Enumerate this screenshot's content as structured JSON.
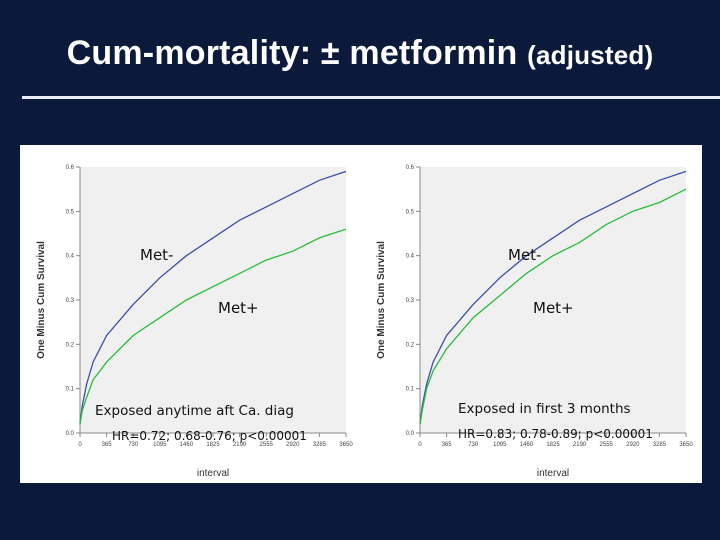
{
  "title": {
    "main": "Cum-mortality: ± metformin",
    "sub": "(adjusted)"
  },
  "chart_data": [
    {
      "type": "line",
      "ylabel": "One Minus Cum Survival",
      "xlabel": "interval",
      "ylim": [
        0,
        0.6
      ],
      "yticks": [
        "0.0",
        "0.1",
        "0.2",
        "0.3",
        "0.4",
        "0.5",
        "0.6"
      ],
      "xlim": [
        0,
        3650
      ],
      "xticks": [
        "0",
        "365",
        "730",
        "1095",
        "1460",
        "1825",
        "2190",
        "2555",
        "2920",
        "3285",
        "3650"
      ],
      "series": [
        {
          "name": "Met-",
          "color": "#3b4fa8",
          "x": [
            0,
            30,
            90,
            180,
            365,
            730,
            1095,
            1460,
            1825,
            2190,
            2555,
            2920,
            3285,
            3650
          ],
          "values": [
            0.02,
            0.06,
            0.11,
            0.16,
            0.22,
            0.29,
            0.35,
            0.4,
            0.44,
            0.48,
            0.51,
            0.54,
            0.57,
            0.59
          ]
        },
        {
          "name": "Met+",
          "color": "#2bbb3b",
          "x": [
            0,
            30,
            90,
            180,
            365,
            730,
            1095,
            1460,
            1825,
            2190,
            2555,
            2920,
            3285,
            3650
          ],
          "values": [
            0.02,
            0.05,
            0.08,
            0.12,
            0.16,
            0.22,
            0.26,
            0.3,
            0.33,
            0.36,
            0.39,
            0.41,
            0.44,
            0.46
          ]
        }
      ],
      "annotations": {
        "exposure": "Exposed anytime aft Ca. diag",
        "hr": "HR=0.72; 0.68-0.76; p<0.00001"
      }
    },
    {
      "type": "line",
      "ylabel": "One Minus Cum Survival",
      "xlabel": "interval",
      "ylim": [
        0,
        0.6
      ],
      "yticks": [
        "0.0",
        "0.1",
        "0.2",
        "0.3",
        "0.4",
        "0.5",
        "0.6"
      ],
      "xlim": [
        0,
        3650
      ],
      "xticks": [
        "0",
        "365",
        "730",
        "1095",
        "1460",
        "1825",
        "2190",
        "2555",
        "2920",
        "3285",
        "3650"
      ],
      "series": [
        {
          "name": "Met-",
          "color": "#3b4fa8",
          "x": [
            0,
            30,
            90,
            180,
            365,
            730,
            1095,
            1460,
            1825,
            2190,
            2555,
            2920,
            3285,
            3650
          ],
          "values": [
            0.02,
            0.06,
            0.11,
            0.16,
            0.22,
            0.29,
            0.35,
            0.4,
            0.44,
            0.48,
            0.51,
            0.54,
            0.57,
            0.59
          ]
        },
        {
          "name": "Met+",
          "color": "#2bbb3b",
          "x": [
            0,
            30,
            90,
            180,
            365,
            730,
            1095,
            1460,
            1825,
            2190,
            2555,
            2920,
            3285,
            3650
          ],
          "values": [
            0.02,
            0.05,
            0.1,
            0.14,
            0.19,
            0.26,
            0.31,
            0.36,
            0.4,
            0.43,
            0.47,
            0.5,
            0.52,
            0.55
          ]
        }
      ],
      "annotations": {
        "exposure": "Exposed in first 3 months",
        "hr": "HR=0.83; 0.78-0.89; p<0.00001"
      }
    }
  ]
}
